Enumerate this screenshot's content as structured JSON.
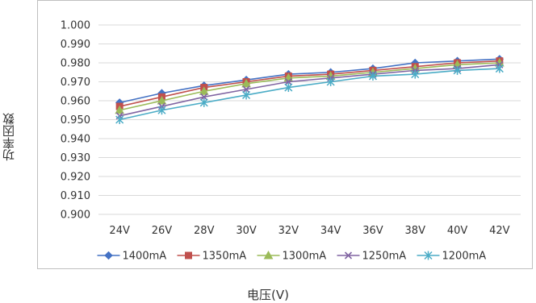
{
  "chart_data": {
    "type": "line",
    "xlabel": "电压(V)",
    "ylabel": "功率因数",
    "categories": [
      "24V",
      "26V",
      "28V",
      "30V",
      "32V",
      "34V",
      "36V",
      "38V",
      "40V",
      "42V"
    ],
    "ylim": [
      0.9,
      1.0
    ],
    "yticks": [
      "1.000",
      "0.990",
      "0.980",
      "0.970",
      "0.960",
      "0.950",
      "0.940",
      "0.930",
      "0.920",
      "0.910",
      "0.900"
    ],
    "grid": true,
    "legend": "bottom",
    "series": [
      {
        "name": "1400mA",
        "color": "#4472C4",
        "marker": "diamond",
        "values": [
          0.959,
          0.964,
          0.968,
          0.971,
          0.974,
          0.975,
          0.977,
          0.98,
          0.981,
          0.982
        ]
      },
      {
        "name": "1350mA",
        "color": "#C0504D",
        "marker": "square",
        "values": [
          0.957,
          0.962,
          0.967,
          0.97,
          0.973,
          0.974,
          0.976,
          0.978,
          0.98,
          0.981
        ]
      },
      {
        "name": "1300mA",
        "color": "#9BBB59",
        "marker": "triangle",
        "values": [
          0.955,
          0.96,
          0.965,
          0.969,
          0.972,
          0.973,
          0.975,
          0.977,
          0.979,
          0.98
        ]
      },
      {
        "name": "1250mA",
        "color": "#8064A2",
        "marker": "x",
        "values": [
          0.952,
          0.957,
          0.962,
          0.966,
          0.97,
          0.972,
          0.974,
          0.976,
          0.977,
          0.979
        ]
      },
      {
        "name": "1200mA",
        "color": "#4BACC6",
        "marker": "star",
        "values": [
          0.95,
          0.955,
          0.959,
          0.963,
          0.967,
          0.97,
          0.973,
          0.974,
          0.976,
          0.977
        ]
      }
    ]
  }
}
